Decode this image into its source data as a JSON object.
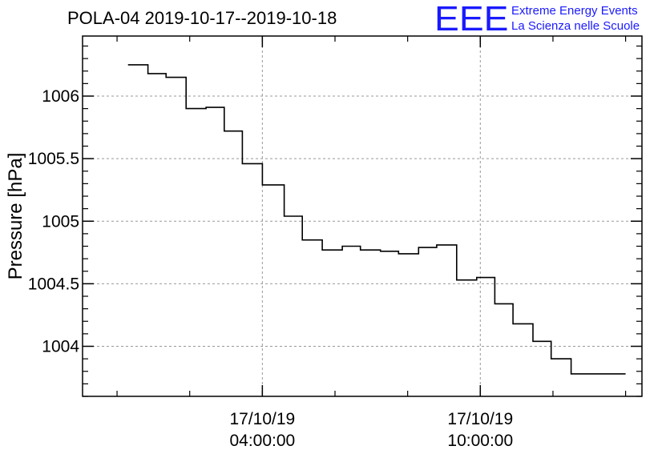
{
  "header": {
    "title": "POLA-04 2019-10-17--2019-10-18",
    "logo_mark": "EEE",
    "logo_line1": "Extreme Energy Events",
    "logo_line2": "La Scienza nelle Scuole"
  },
  "colors": {
    "logo": "#1a1aff",
    "line": "#000000",
    "grid": "#999999"
  },
  "chart_data": {
    "type": "line",
    "step": true,
    "title": "POLA-04 2019-10-17--2019-10-18",
    "ylabel": "Pressure [hPa]",
    "xlabel": "",
    "ylim": [
      1003.6,
      1006.48
    ],
    "xlim_hours": [
      -0.95,
      14.45
    ],
    "grid": true,
    "x_ticks": [
      {
        "hour": 4,
        "line1": "17/10/19",
        "line2": "04:00:00"
      },
      {
        "hour": 10,
        "line1": "17/10/19",
        "line2": "10:00:00"
      }
    ],
    "x_minor_hours": [
      0,
      2,
      4,
      6,
      8,
      10,
      12,
      14
    ],
    "y_ticks": [
      {
        "value": 1004,
        "label": "1004"
      },
      {
        "value": 1004.5,
        "label": "1004.5"
      },
      {
        "value": 1005,
        "label": "1005"
      },
      {
        "value": 1005.5,
        "label": "1005.5"
      },
      {
        "value": 1006,
        "label": "1006"
      }
    ],
    "series": [
      {
        "x_hours": [
          0.3,
          0.85,
          1.35,
          1.9,
          2.45,
          2.95,
          3.45,
          4.0,
          4.6,
          5.1,
          5.65,
          6.2,
          6.7,
          7.25,
          7.75,
          8.3,
          8.8,
          9.35,
          9.9,
          10.4,
          10.9,
          11.45,
          11.95,
          12.5,
          13.0,
          13.5
        ],
        "values": [
          1006.25,
          1006.18,
          1006.15,
          1005.9,
          1005.91,
          1005.72,
          1005.46,
          1005.29,
          1005.04,
          1004.85,
          1004.77,
          1004.8,
          1004.77,
          1004.76,
          1004.74,
          1004.79,
          1004.81,
          1004.53,
          1004.55,
          1004.34,
          1004.18,
          1004.04,
          1003.9,
          1003.78,
          1003.78,
          1003.78
        ]
      }
    ]
  }
}
